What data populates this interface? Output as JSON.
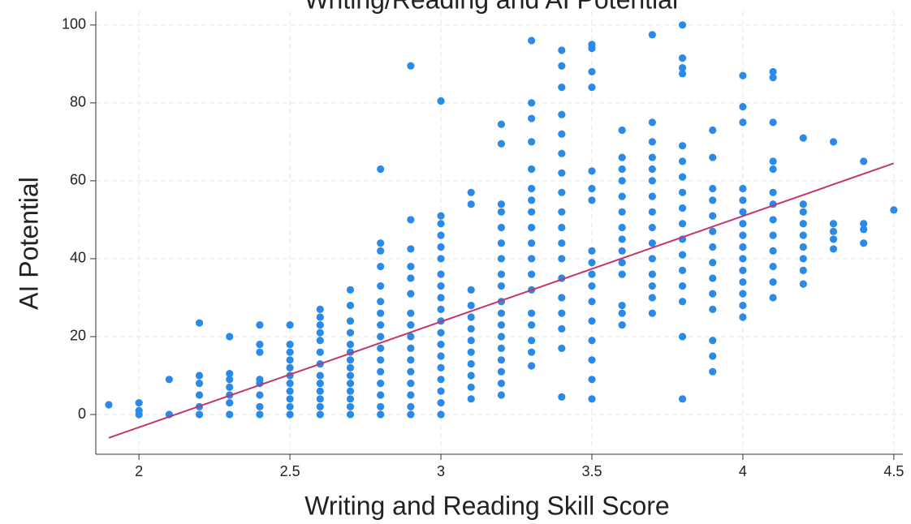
{
  "chart_data": {
    "type": "scatter",
    "title": "Writing/Reading and AI Potential",
    "x_label": "Writing and Reading Skill Score",
    "y_label": "AI Potential",
    "xlim": [
      1.857,
      4.53
    ],
    "ylim": [
      -10.2,
      103.5
    ],
    "xticks": [
      2,
      2.5,
      3,
      3.5,
      4,
      4.5
    ],
    "yticks": [
      0,
      20,
      40,
      60,
      80,
      100
    ],
    "grid": true,
    "series": [
      {
        "color": "#2a8ae6",
        "x": [
          1.9,
          2,
          2,
          2,
          2.1,
          2.1,
          2.2,
          2.2,
          2.2,
          2.2,
          2.2,
          2.2,
          2.3,
          2.3,
          2.3,
          2.3,
          2.3,
          2.3,
          2.3,
          2.4,
          2.4,
          2.4,
          2.4,
          2.4,
          2.4,
          2.4,
          2.4,
          2.5,
          2.5,
          2.5,
          2.5,
          2.5,
          2.5,
          2.5,
          2.5,
          2.5,
          2.5,
          2.5,
          2.6,
          2.6,
          2.6,
          2.6,
          2.6,
          2.6,
          2.6,
          2.6,
          2.6,
          2.6,
          2.6,
          2.6,
          2.6,
          2.7,
          2.7,
          2.7,
          2.7,
          2.7,
          2.7,
          2.7,
          2.7,
          2.7,
          2.7,
          2.7,
          2.7,
          2.7,
          2.7,
          2.8,
          2.8,
          2.8,
          2.8,
          2.8,
          2.8,
          2.8,
          2.8,
          2.8,
          2.8,
          2.8,
          2.8,
          2.8,
          2.8,
          2.8,
          2.8,
          2.9,
          2.9,
          2.9,
          2.9,
          2.9,
          2.9,
          2.9,
          2.9,
          2.9,
          2.9,
          2.9,
          2.9,
          2.9,
          2.9,
          2.9,
          2.9,
          3,
          3,
          3,
          3,
          3,
          3,
          3,
          3,
          3,
          3,
          3,
          3,
          3,
          3,
          3,
          3,
          3,
          3,
          3,
          3.1,
          3.1,
          3.1,
          3.1,
          3.1,
          3.1,
          3.1,
          3.1,
          3.1,
          3.1,
          3.1,
          3.1,
          3.2,
          3.2,
          3.2,
          3.2,
          3.2,
          3.2,
          3.2,
          3.2,
          3.2,
          3.2,
          3.2,
          3.2,
          3.2,
          3.2,
          3.2,
          3.2,
          3.2,
          3.2,
          3.3,
          3.3,
          3.3,
          3.3,
          3.3,
          3.3,
          3.3,
          3.3,
          3.3,
          3.3,
          3.3,
          3.3,
          3.3,
          3.3,
          3.3,
          3.3,
          3.3,
          3.3,
          3.4,
          3.4,
          3.4,
          3.4,
          3.4,
          3.4,
          3.4,
          3.4,
          3.4,
          3.4,
          3.4,
          3.4,
          3.4,
          3.4,
          3.4,
          3.4,
          3.4,
          3.4,
          3.5,
          3.5,
          3.5,
          3.5,
          3.5,
          3.5,
          3.5,
          3.5,
          3.5,
          3.5,
          3.5,
          3.5,
          3.5,
          3.5,
          3.5,
          3.5,
          3.5,
          3.6,
          3.6,
          3.6,
          3.6,
          3.6,
          3.6,
          3.6,
          3.6,
          3.6,
          3.6,
          3.6,
          3.6,
          3.6,
          3.6,
          3.7,
          3.7,
          3.7,
          3.7,
          3.7,
          3.7,
          3.7,
          3.7,
          3.7,
          3.7,
          3.7,
          3.7,
          3.7,
          3.7,
          3.7,
          3.8,
          3.8,
          3.8,
          3.8,
          3.8,
          3.8,
          3.8,
          3.8,
          3.8,
          3.8,
          3.8,
          3.8,
          3.8,
          3.8,
          3.8,
          3.8,
          3.8,
          3.9,
          3.9,
          3.9,
          3.9,
          3.9,
          3.9,
          3.9,
          3.9,
          3.9,
          3.9,
          3.9,
          3.9,
          3.9,
          3.9,
          4,
          4,
          4,
          4,
          4,
          4,
          4,
          4,
          4,
          4,
          4,
          4,
          4,
          4,
          4,
          4.1,
          4.1,
          4.1,
          4.1,
          4.1,
          4.1,
          4.1,
          4.1,
          4.1,
          4.1,
          4.1,
          4.1,
          4.1,
          4.2,
          4.2,
          4.2,
          4.2,
          4.2,
          4.2,
          4.2,
          4.2,
          4.2,
          4.3,
          4.3,
          4.3,
          4.3,
          4.3,
          4.4,
          4.4,
          4.4,
          4.4,
          4.5
        ],
        "values": [
          2.5,
          0,
          1,
          3,
          0,
          9,
          0,
          2,
          5,
          8,
          10,
          23.5,
          0,
          3,
          5,
          7,
          9,
          10.5,
          20,
          0,
          2,
          5,
          8,
          9,
          16,
          18,
          23,
          0,
          2,
          4,
          6,
          8,
          10,
          12,
          14,
          16,
          18,
          23,
          0,
          2,
          4,
          6,
          8,
          10,
          13,
          16,
          19,
          21,
          23,
          25,
          27,
          0,
          2,
          4,
          6,
          8,
          10,
          12,
          14,
          16,
          18,
          21,
          24,
          28,
          32,
          0,
          2,
          5,
          8,
          11,
          14,
          17,
          20,
          23,
          26,
          29,
          33,
          38,
          42,
          44,
          63,
          0,
          2,
          5,
          8,
          11,
          14,
          17,
          20,
          23,
          26,
          31,
          35,
          38,
          42.5,
          50,
          89.5,
          0,
          3,
          6,
          9,
          12,
          15,
          18,
          21,
          24,
          27,
          30,
          33,
          36,
          40,
          43,
          46,
          49,
          51,
          80.5,
          4,
          7,
          10,
          13,
          16,
          19,
          22,
          25,
          28,
          32,
          54,
          57,
          5,
          8,
          11,
          14,
          17,
          20,
          23,
          26,
          29,
          33,
          36,
          40,
          44,
          48,
          52,
          54,
          69.5,
          74.5,
          12.5,
          16,
          19,
          23,
          26,
          32,
          36,
          40,
          44,
          48,
          52,
          55,
          58,
          63,
          70,
          76,
          80,
          96,
          4.5,
          17,
          22,
          26,
          30,
          35,
          40,
          44,
          48,
          52,
          57,
          62,
          67,
          72,
          77,
          84,
          89.5,
          93.5,
          4,
          9,
          14,
          19,
          24,
          29,
          33,
          36,
          39,
          42,
          55,
          58,
          62.5,
          84,
          88,
          94,
          95,
          23,
          26,
          28,
          36,
          39,
          42,
          45,
          48,
          52,
          56,
          60,
          63,
          66,
          73,
          26,
          30,
          33,
          36,
          40,
          44,
          48,
          52,
          56,
          60,
          63,
          66,
          70,
          75,
          97.5,
          4,
          20,
          29,
          33,
          37,
          41,
          45,
          49,
          53,
          57,
          61,
          65,
          69,
          87.5,
          89,
          91.5,
          100,
          11,
          15,
          19,
          27,
          31,
          35,
          39,
          43,
          47,
          51,
          55,
          58,
          66,
          73,
          25,
          28,
          31,
          34,
          37,
          40,
          43,
          46,
          49,
          52,
          55,
          58,
          75,
          79,
          87,
          30,
          34,
          38,
          42,
          46,
          50,
          54,
          57,
          63,
          65,
          75,
          86.5,
          88,
          33.5,
          37,
          40,
          43,
          46,
          49,
          52,
          54,
          71,
          42.5,
          45,
          47,
          49,
          70,
          44,
          47.5,
          49,
          65,
          52.5
        ]
      }
    ],
    "fit": {
      "color": "#c2356e",
      "x": [
        1.9,
        4.5
      ],
      "values": [
        -6,
        64.5
      ]
    }
  }
}
